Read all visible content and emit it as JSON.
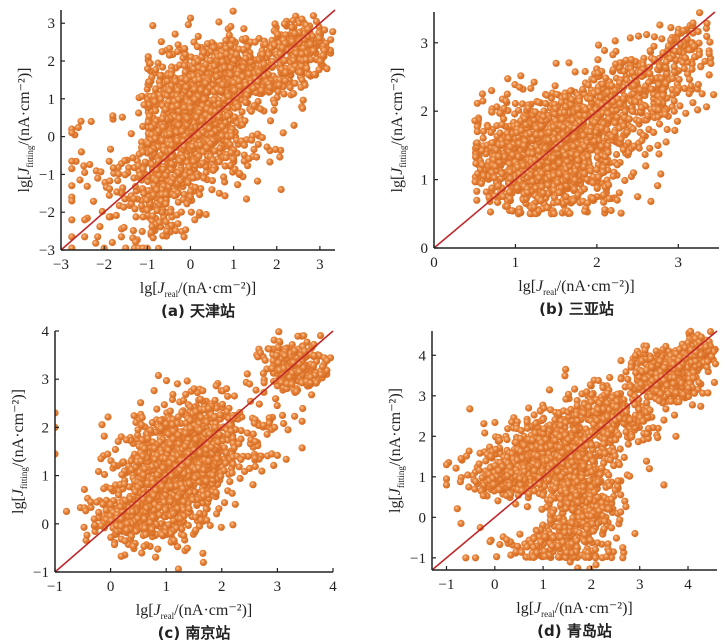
{
  "figure": {
    "marker_color": "#e8843a",
    "marker_highlight": "#f6c9a0",
    "line_color": "#c0282a",
    "axis_color": "#222222"
  },
  "chart_data": [
    {
      "type": "scatter",
      "id": "a",
      "caption": "(a)  天津站",
      "xlabel_prefix": "lg[J",
      "xlabel_sub": "real",
      "xlabel_suffix": "/(nA·cm⁻²)]",
      "ylabel_prefix": "lg[J",
      "ylabel_sub": "fitting",
      "ylabel_suffix": "/(nA·cm⁻²)]",
      "xlim": [
        -3,
        3.35
      ],
      "ylim": [
        -3,
        3.35
      ],
      "xticks": [
        -3,
        -2,
        -1,
        0,
        1,
        2,
        3
      ],
      "yticks": [
        -3,
        -2,
        -1,
        0,
        1,
        2,
        3
      ],
      "reference_line": "y = x",
      "clusters": [
        {
          "cx": 0.0,
          "cy": 0.6,
          "sx": 0.55,
          "sy": 0.8,
          "n": 900,
          "xmin": -1.0
        },
        {
          "cx": 1.3,
          "cy": 1.7,
          "sx": 0.7,
          "sy": 0.45,
          "n": 450
        },
        {
          "cx": 2.6,
          "cy": 2.4,
          "sx": 0.35,
          "sy": 0.35,
          "n": 200
        },
        {
          "cx": -0.7,
          "cy": -1.2,
          "sx": 0.35,
          "sy": 0.8,
          "n": 250
        },
        {
          "cx": -1.6,
          "cy": -1.4,
          "sx": 0.6,
          "sy": 0.9,
          "n": 70
        },
        {
          "cx": 0.9,
          "cy": -0.3,
          "sx": 0.6,
          "sy": 0.5,
          "n": 80
        }
      ],
      "outliers": [
        {
          "x": -2.75,
          "y": 0.2
        },
        {
          "x": -2.75,
          "y": 0.1
        },
        {
          "x": -2.75,
          "y": -0.65
        },
        {
          "x": -2.75,
          "y": -0.85
        },
        {
          "x": -2.75,
          "y": -1.3
        },
        {
          "x": -2.75,
          "y": -1.6
        },
        {
          "x": -2.75,
          "y": -1.7
        },
        {
          "x": -2.75,
          "y": -2.2
        },
        {
          "x": -2.75,
          "y": -2.65
        },
        {
          "x": -2.75,
          "y": -2.95
        },
        {
          "x": -2.3,
          "y": 0.4
        },
        {
          "x": -2.45,
          "y": -0.95
        },
        {
          "x": -2.45,
          "y": -2.2
        },
        {
          "x": -2.45,
          "y": -2.65
        },
        {
          "x": -2.15,
          "y": -1.1
        },
        {
          "x": -2.15,
          "y": -2.65
        },
        {
          "x": -2.0,
          "y": -2.95
        },
        {
          "x": -1.8,
          "y": 0.55
        },
        {
          "x": -1.6,
          "y": -2.65
        },
        {
          "x": -1.5,
          "y": -2.95
        },
        {
          "x": -1.3,
          "y": -2.95
        },
        {
          "x": -1.2,
          "y": -2.95
        },
        {
          "x": -1.1,
          "y": -2.95
        },
        {
          "x": -1.0,
          "y": -2.95
        },
        {
          "x": -0.3,
          "y": 2.25
        },
        {
          "x": 2.1,
          "y": -1.4
        },
        {
          "x": 1.3,
          "y": -1.65
        },
        {
          "x": 0.1,
          "y": -2.2
        },
        {
          "x": -0.15,
          "y": -2.65
        },
        {
          "x": -0.55,
          "y": -2.5
        },
        {
          "x": 2.6,
          "y": 0.75
        },
        {
          "x": 2.4,
          "y": 0.3
        },
        {
          "x": 2.15,
          "y": 0.1
        },
        {
          "x": 1.4,
          "y": 2.5
        },
        {
          "x": 1.5,
          "y": 2.5
        }
      ]
    },
    {
      "type": "scatter",
      "id": "b",
      "caption": "(b)  三亚站",
      "xlabel_prefix": "lg[J",
      "xlabel_sub": "real",
      "xlabel_suffix": "/(nA·cm⁻²)]",
      "ylabel_prefix": "lg[J",
      "ylabel_sub": "fitting",
      "ylabel_suffix": "/(nA·cm⁻²)]",
      "xlim": [
        0,
        3.5
      ],
      "ylim": [
        0,
        3.45
      ],
      "xticks": [
        0,
        1,
        2,
        3
      ],
      "yticks": [
        0,
        1,
        2,
        3
      ],
      "reference_line": "y = x",
      "clusters": [
        {
          "cx": 1.3,
          "cy": 1.3,
          "sx": 0.4,
          "sy": 0.4,
          "n": 1100,
          "ymin": 0.5,
          "xmin": 0.5
        },
        {
          "cx": 1.9,
          "cy": 1.8,
          "sx": 0.35,
          "sy": 0.35,
          "n": 350
        },
        {
          "cx": 2.6,
          "cy": 2.4,
          "sx": 0.35,
          "sy": 0.3,
          "n": 250
        },
        {
          "cx": 3.1,
          "cy": 3.0,
          "sx": 0.2,
          "sy": 0.2,
          "n": 80
        }
      ],
      "outliers": [
        {
          "x": 0.6,
          "y": 2.15
        },
        {
          "x": 1.5,
          "y": 2.7
        },
        {
          "x": 2.95,
          "y": 2.65
        },
        {
          "x": 2.95,
          "y": 2.15
        },
        {
          "x": 2.95,
          "y": 2.0
        },
        {
          "x": 2.75,
          "y": 1.5
        },
        {
          "x": 2.85,
          "y": 1.55
        },
        {
          "x": 2.5,
          "y": 0.75
        },
        {
          "x": 2.25,
          "y": 0.7
        },
        {
          "x": 2.15,
          "y": 0.72
        },
        {
          "x": 1.95,
          "y": 0.72
        },
        {
          "x": 2.6,
          "y": 1.2
        },
        {
          "x": 2.45,
          "y": 1.1
        },
        {
          "x": 2.2,
          "y": 1.05
        },
        {
          "x": 0.9,
          "y": 2.25
        },
        {
          "x": 1.05,
          "y": 2.35
        }
      ]
    },
    {
      "type": "scatter",
      "id": "c",
      "caption": "(c)  南京站",
      "xlabel_prefix": "lg[J",
      "xlabel_sub": "real",
      "xlabel_suffix": "/(nA·cm⁻²)]",
      "ylabel_prefix": "lg[J",
      "ylabel_sub": "fitting",
      "ylabel_suffix": "/(nA·cm⁻²)]",
      "xlim": [
        -1,
        4
      ],
      "ylim": [
        -1,
        4
      ],
      "xticks": [
        -1,
        0,
        1,
        2,
        3,
        4
      ],
      "yticks": [
        -1,
        0,
        1,
        2,
        3,
        4
      ],
      "reference_line": "y = x",
      "clusters": [
        {
          "cx": 1.1,
          "cy": 1.0,
          "sx": 0.45,
          "sy": 0.6,
          "n": 900
        },
        {
          "cx": 1.7,
          "cy": 1.8,
          "sx": 0.35,
          "sy": 0.45,
          "n": 300
        },
        {
          "cx": 0.3,
          "cy": 0.1,
          "sx": 0.35,
          "sy": 0.3,
          "n": 200
        },
        {
          "cx": 3.3,
          "cy": 3.25,
          "sx": 0.3,
          "sy": 0.3,
          "n": 250
        },
        {
          "cx": 2.6,
          "cy": 1.8,
          "sx": 0.3,
          "sy": 0.5,
          "n": 60
        }
      ],
      "outliers": [
        {
          "x": -1.0,
          "y": 2.3
        },
        {
          "x": -1.0,
          "y": 2.0
        },
        {
          "x": -1.0,
          "y": 1.45
        },
        {
          "x": 0.75,
          "y": 2.1
        },
        {
          "x": 2.2,
          "y": -0.02
        },
        {
          "x": 1.9,
          "y": 0.65
        },
        {
          "x": 2.9,
          "y": 1.45
        },
        {
          "x": 3.0,
          "y": 1.42
        },
        {
          "x": 2.95,
          "y": 2.0
        },
        {
          "x": 2.5,
          "y": 2.9
        },
        {
          "x": 2.5,
          "y": 1.15
        },
        {
          "x": 1.45,
          "y": 2.75
        },
        {
          "x": 1.5,
          "y": 2.8
        },
        {
          "x": -0.25,
          "y": 0.45
        },
        {
          "x": 0.0,
          "y": 0.4
        }
      ]
    },
    {
      "type": "scatter",
      "id": "d",
      "caption": "(d)  青岛站",
      "xlabel_prefix": "lg[J",
      "xlabel_sub": "real",
      "xlabel_suffix": "/(nA·cm⁻²)]",
      "ylabel_prefix": "lg[J",
      "ylabel_sub": "fitting",
      "ylabel_suffix": "/(nA·cm⁻²)]",
      "xlim": [
        -1.3,
        4.6
      ],
      "ylim": [
        -1.3,
        4.6
      ],
      "xticks": [
        -1,
        0,
        1,
        2,
        3,
        4
      ],
      "yticks": [
        -1,
        0,
        1,
        2,
        3,
        4
      ],
      "reference_line": "y = x",
      "clusters": [
        {
          "cx": 1.2,
          "cy": 1.6,
          "sx": 0.6,
          "sy": 0.5,
          "n": 600
        },
        {
          "cx": 0.2,
          "cy": 1.0,
          "sx": 0.5,
          "sy": 0.25,
          "n": 250
        },
        {
          "cx": 1.8,
          "cy": 0.2,
          "sx": 0.4,
          "sy": 0.6,
          "n": 350
        },
        {
          "cx": 2.4,
          "cy": 2.5,
          "sx": 0.45,
          "sy": 0.45,
          "n": 300
        },
        {
          "cx": 3.6,
          "cy": 3.5,
          "sx": 0.35,
          "sy": 0.35,
          "n": 350
        },
        {
          "cx": 4.2,
          "cy": 4.1,
          "sx": 0.2,
          "sy": 0.2,
          "n": 120
        },
        {
          "cx": 1.2,
          "cy": -0.7,
          "sx": 0.6,
          "sy": 0.25,
          "n": 120,
          "ymin": -1.0
        }
      ],
      "outliers": [
        {
          "x": -1.0,
          "y": 1.3
        },
        {
          "x": -1.0,
          "y": 0.95
        },
        {
          "x": -1.0,
          "y": 0.8
        },
        {
          "x": -0.7,
          "y": 1.45
        },
        {
          "x": -0.7,
          "y": -0.15
        },
        {
          "x": -0.6,
          "y": -1.0
        },
        {
          "x": -0.4,
          "y": -1.0
        },
        {
          "x": -0.3,
          "y": -0.25
        },
        {
          "x": -0.1,
          "y": -0.6
        },
        {
          "x": 0.1,
          "y": 1.9
        },
        {
          "x": 0.35,
          "y": 2.35
        },
        {
          "x": 3.5,
          "y": 0.8
        },
        {
          "x": 3.2,
          "y": 1.2
        },
        {
          "x": 3.75,
          "y": 2.0
        },
        {
          "x": 3.5,
          "y": 2.4
        },
        {
          "x": 2.65,
          "y": -1.0
        },
        {
          "x": 2.65,
          "y": -0.75
        },
        {
          "x": 2.9,
          "y": -0.4
        },
        {
          "x": 0.7,
          "y": 2.7
        },
        {
          "x": 1.9,
          "y": 3.1
        }
      ]
    }
  ]
}
